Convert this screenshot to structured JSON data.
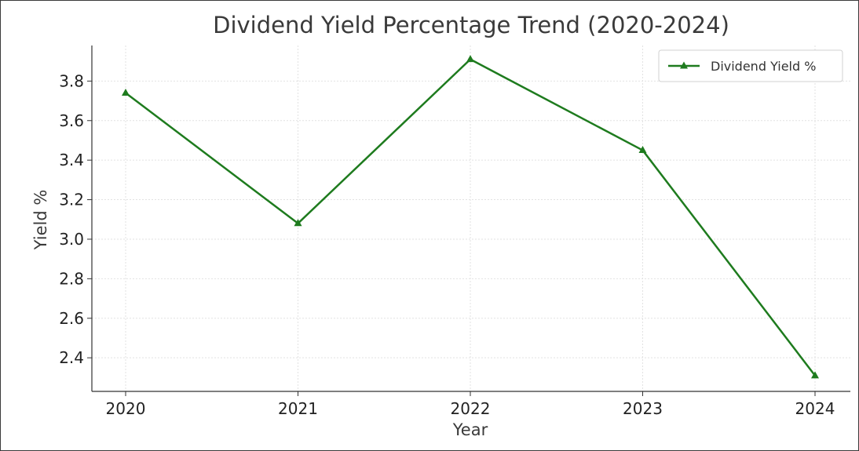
{
  "chart_data": {
    "type": "line",
    "title": "Dividend Yield Percentage Trend (2020-2024)",
    "xlabel": "Year",
    "ylabel": "Yield %",
    "categories": [
      "2020",
      "2021",
      "2022",
      "2023",
      "2024"
    ],
    "series": [
      {
        "name": "Dividend Yield %",
        "values": [
          3.74,
          3.08,
          3.91,
          3.45,
          2.31
        ],
        "color": "#1e7b1e",
        "marker": "triangle-up"
      }
    ],
    "ylim": [
      2.23,
      3.98
    ],
    "yticks": [
      2.4,
      2.6,
      2.8,
      3.0,
      3.2,
      3.4,
      3.6,
      3.8
    ],
    "ytick_labels": [
      "2.4",
      "2.6",
      "2.8",
      "3.0",
      "3.2",
      "3.4",
      "3.6",
      "3.8"
    ],
    "grid": true,
    "legend_position": "top-right"
  }
}
